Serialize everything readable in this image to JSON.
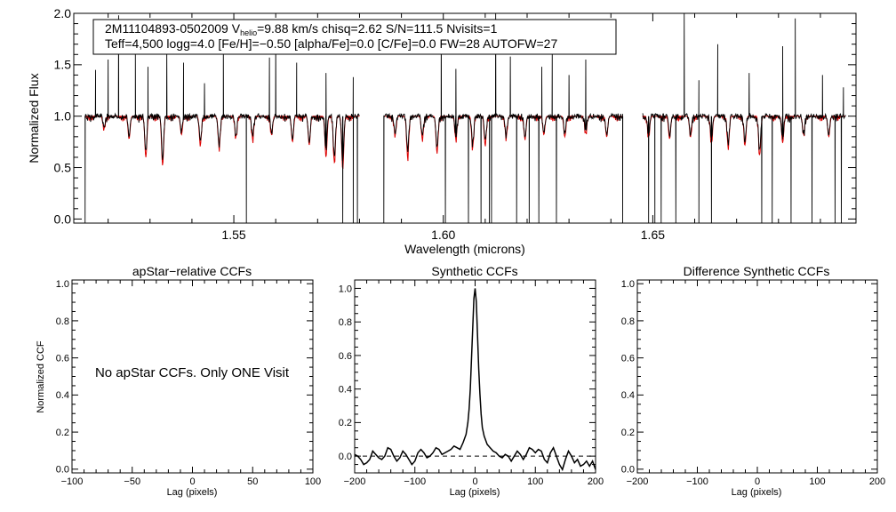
{
  "figure": {
    "info_line1": {
      "star_id": "2M11104893-0502009",
      "v_label": "V",
      "v_sub": "helio",
      "v_value": "=9.88 km/s",
      "rest": "chisq=2.62  S/N=111.5  Nvisits=1"
    },
    "info_line2": "Teff=4,500 logg=4.0 [Fe/H]=−0.50 [alpha/Fe]=0.0 [C/Fe]=0.0 FW=28 AUTOFW=27",
    "no_ccf_message": "No apStar CCFs.  Only ONE Visit"
  },
  "colors": {
    "observed": "#000000",
    "model": "#dd0000",
    "axis": "#000000"
  },
  "chart_data": [
    {
      "id": "spectrum",
      "type": "line",
      "title": "",
      "xlabel": "Wavelength (microns)",
      "ylabel": "Normalized Flux",
      "xlim": [
        1.5118,
        1.6985
      ],
      "ylim": [
        -0.04,
        2.0
      ],
      "xticks": [
        1.55,
        1.6,
        1.65
      ],
      "xtick_labels": [
        "1.55",
        "1.60",
        "1.65"
      ],
      "yticks": [
        0.0,
        0.5,
        1.0,
        1.5,
        2.0
      ],
      "ytick_labels": [
        "0.0",
        "0.5",
        "1.0",
        "1.5",
        "2.0"
      ],
      "continuum": 1.0,
      "chip_ranges": [
        [
          1.5145,
          1.58
        ],
        [
          1.5858,
          1.6428
        ],
        [
          1.6475,
          1.696
        ]
      ],
      "series": [
        {
          "name": "observed spectrum",
          "color": "#000000",
          "emission_spikes": [
            [
              1.517,
              1.45
            ],
            [
              1.52,
              1.55
            ],
            [
              1.5225,
              1.98
            ],
            [
              1.5265,
              1.6
            ],
            [
              1.5295,
              1.48
            ],
            [
              1.534,
              1.62
            ],
            [
              1.538,
              1.52
            ],
            [
              1.543,
              1.32
            ],
            [
              1.5475,
              1.68
            ],
            [
              1.5585,
              1.57
            ],
            [
              1.56,
              1.75
            ],
            [
              1.565,
              1.52
            ],
            [
              1.572,
              1.42
            ],
            [
              1.5785,
              1.38
            ],
            [
              1.5995,
              1.92
            ],
            [
              1.603,
              1.46
            ],
            [
              1.6125,
              2.05
            ],
            [
              1.616,
              1.58
            ],
            [
              1.6235,
              1.48
            ],
            [
              1.626,
              1.66
            ],
            [
              1.63,
              1.4
            ],
            [
              1.634,
              1.55
            ],
            [
              1.6575,
              2.05
            ],
            [
              1.661,
              1.35
            ],
            [
              1.6655,
              1.7
            ],
            [
              1.673,
              1.42
            ],
            [
              1.681,
              1.68
            ],
            [
              1.684,
              1.95
            ],
            [
              1.6905,
              1.4
            ],
            [
              1.6955,
              1.28
            ]
          ],
          "bad_pixel_drops": [
            1.5145,
            1.553,
            1.576,
            1.5785,
            1.5795,
            1.5858,
            1.6005,
            1.606,
            1.609,
            1.611,
            1.6115,
            1.6175,
            1.6205,
            1.6228,
            1.627,
            1.6428,
            1.649,
            1.6505,
            1.652,
            1.6555,
            1.661,
            1.664,
            1.676,
            1.6785,
            1.683,
            1.688,
            1.6935,
            1.695
          ]
        },
        {
          "name": "best-fit model",
          "color": "#dd0000",
          "absorption_lines": [
            [
              1.519,
              0.88
            ],
            [
              1.525,
              0.78
            ],
            [
              1.529,
              0.6
            ],
            [
              1.533,
              0.52
            ],
            [
              1.5375,
              0.82
            ],
            [
              1.542,
              0.72
            ],
            [
              1.5465,
              0.7
            ],
            [
              1.5505,
              0.8
            ],
            [
              1.5545,
              0.78
            ],
            [
              1.559,
              0.82
            ],
            [
              1.564,
              0.75
            ],
            [
              1.568,
              0.72
            ],
            [
              1.572,
              0.6
            ],
            [
              1.574,
              0.55
            ],
            [
              1.576,
              0.48
            ],
            [
              1.5885,
              0.82
            ],
            [
              1.5915,
              0.6
            ],
            [
              1.595,
              0.78
            ],
            [
              1.5985,
              0.65
            ],
            [
              1.603,
              0.78
            ],
            [
              1.607,
              0.7
            ],
            [
              1.61,
              0.72
            ],
            [
              1.615,
              0.8
            ],
            [
              1.6195,
              0.78
            ],
            [
              1.624,
              0.82
            ],
            [
              1.629,
              0.8
            ],
            [
              1.634,
              0.84
            ],
            [
              1.639,
              0.8
            ],
            [
              1.649,
              0.8
            ],
            [
              1.654,
              0.78
            ],
            [
              1.659,
              0.8
            ],
            [
              1.664,
              0.74
            ],
            [
              1.668,
              0.7
            ],
            [
              1.672,
              0.72
            ],
            [
              1.6755,
              0.62
            ],
            [
              1.681,
              0.74
            ],
            [
              1.686,
              0.82
            ],
            [
              1.692,
              0.8
            ]
          ]
        }
      ]
    },
    {
      "id": "apstar-ccf",
      "type": "line",
      "title": "apStar−relative CCFs",
      "xlabel": "Lag (pixels)",
      "ylabel": "Normalized CCF",
      "xlim": [
        -100,
        100
      ],
      "ylim": [
        -0.02,
        1.02
      ],
      "xticks": [
        -100,
        -50,
        0,
        50,
        100
      ],
      "xtick_labels": [
        "−100",
        "−50",
        "0",
        "50",
        "100"
      ],
      "yticks": [
        0.0,
        0.2,
        0.4,
        0.6,
        0.8,
        1.0
      ],
      "ytick_labels": [
        "0.0",
        "0.2",
        "0.4",
        "0.6",
        "0.8",
        "1.0"
      ],
      "series": []
    },
    {
      "id": "synthetic-ccf",
      "type": "line",
      "title": "Synthetic CCFs",
      "xlabel": "Lag (pixels)",
      "ylabel": "",
      "xlim": [
        -200,
        200
      ],
      "ylim": [
        -0.1,
        1.05
      ],
      "xticks": [
        -200,
        -100,
        0,
        100,
        200
      ],
      "xtick_labels": [
        "−200",
        "−100",
        "0",
        "100",
        "200"
      ],
      "yticks": [
        0.0,
        0.2,
        0.4,
        0.6,
        0.8,
        1.0
      ],
      "ytick_labels": [
        "0.0",
        "0.2",
        "0.4",
        "0.6",
        "0.8",
        "1.0"
      ],
      "reference_line": 0.0,
      "peak": {
        "lag": 0,
        "value": 1.0
      },
      "series": [
        {
          "name": "synthetic CCF",
          "color": "#000000",
          "x": [
            -200,
            -195,
            -190,
            -185,
            -180,
            -175,
            -170,
            -165,
            -160,
            -155,
            -150,
            -145,
            -140,
            -135,
            -130,
            -125,
            -120,
            -115,
            -110,
            -105,
            -100,
            -95,
            -90,
            -85,
            -80,
            -75,
            -70,
            -65,
            -60,
            -55,
            -50,
            -45,
            -40,
            -35,
            -30,
            -25,
            -20,
            -15,
            -12,
            -10,
            -8,
            -6,
            -4,
            -2,
            0,
            2,
            4,
            6,
            8,
            10,
            12,
            15,
            20,
            25,
            30,
            35,
            40,
            45,
            50,
            55,
            60,
            65,
            70,
            75,
            80,
            85,
            90,
            95,
            100,
            105,
            110,
            115,
            120,
            125,
            130,
            135,
            140,
            145,
            150,
            155,
            160,
            165,
            170,
            175,
            180,
            185,
            190,
            195,
            200
          ],
          "y": [
            0.01,
            0.0,
            -0.02,
            -0.05,
            -0.04,
            -0.02,
            0.03,
            0.01,
            -0.01,
            -0.02,
            0.0,
            0.05,
            0.04,
            0.0,
            -0.03,
            -0.01,
            0.03,
            0.01,
            -0.02,
            -0.05,
            -0.03,
            0.02,
            0.04,
            0.02,
            -0.01,
            0.0,
            0.02,
            0.05,
            0.04,
            0.01,
            0.02,
            0.03,
            0.04,
            0.06,
            0.05,
            0.04,
            0.08,
            0.13,
            0.2,
            0.28,
            0.4,
            0.58,
            0.76,
            0.94,
            1.0,
            0.92,
            0.72,
            0.52,
            0.37,
            0.25,
            0.17,
            0.12,
            0.07,
            0.05,
            0.03,
            0.02,
            0.0,
            -0.01,
            0.01,
            0.0,
            -0.03,
            0.0,
            0.03,
            0.01,
            -0.02,
            0.01,
            0.05,
            0.04,
            0.02,
            0.04,
            0.03,
            -0.02,
            -0.04,
            0.02,
            0.05,
            0.0,
            -0.05,
            -0.08,
            -0.02,
            0.03,
            0.0,
            -0.04,
            -0.02,
            -0.06,
            -0.05,
            -0.03,
            -0.06,
            -0.03,
            -0.08
          ]
        }
      ]
    },
    {
      "id": "difference-ccf",
      "type": "line",
      "title": "Difference Synthetic CCFs",
      "xlabel": "Lag (pixels)",
      "ylabel": "",
      "xlim": [
        -200,
        200
      ],
      "ylim": [
        -0.02,
        1.02
      ],
      "xticks": [
        -200,
        -100,
        0,
        100,
        200
      ],
      "xtick_labels": [
        "−200",
        "−100",
        "0",
        "100",
        "200"
      ],
      "yticks": [
        0.0,
        0.2,
        0.4,
        0.6,
        0.8,
        1.0
      ],
      "ytick_labels": [
        "0.0",
        "0.2",
        "0.4",
        "0.6",
        "0.8",
        "1.0"
      ],
      "series": []
    }
  ]
}
